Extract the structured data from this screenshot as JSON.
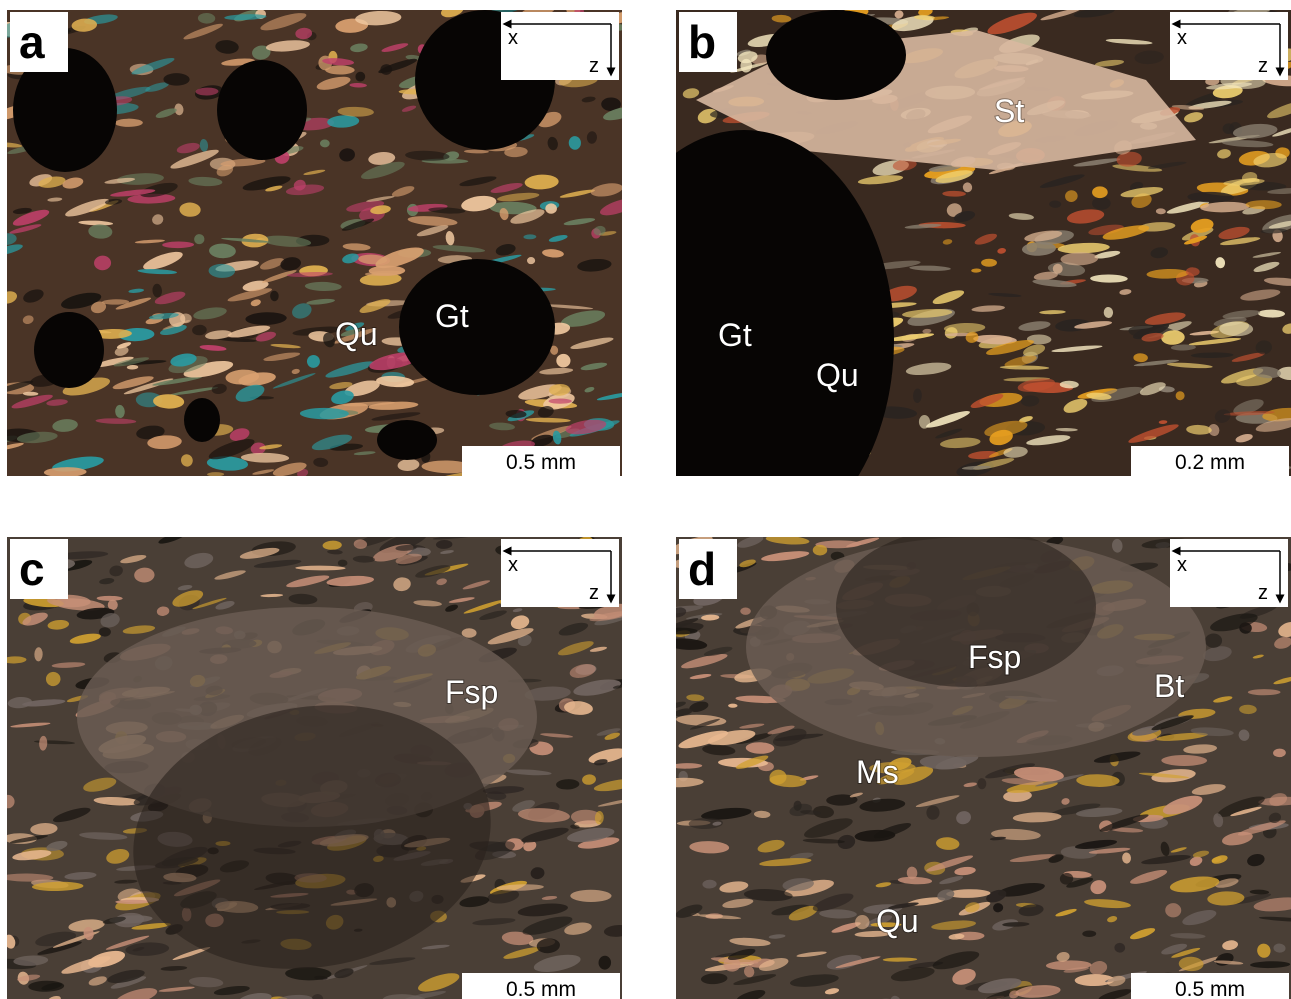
{
  "panels": [
    {
      "letter": "a",
      "axis_x": "x",
      "axis_z": "z",
      "scale_bar": "0.5 mm",
      "labels": [
        "Qu",
        "Gt"
      ]
    },
    {
      "letter": "b",
      "axis_x": "x",
      "axis_z": "z",
      "scale_bar": "0.2 mm",
      "labels": [
        "St",
        "Gt",
        "Qu"
      ]
    },
    {
      "letter": "c",
      "axis_x": "x",
      "axis_z": "z",
      "scale_bar": "0.5 mm",
      "labels": [
        "Fsp"
      ]
    },
    {
      "letter": "d",
      "axis_x": "x",
      "axis_z": "z",
      "scale_bar": "0.5 mm",
      "labels": [
        "Fsp",
        "Bt",
        "Ms",
        "Qu"
      ]
    }
  ]
}
